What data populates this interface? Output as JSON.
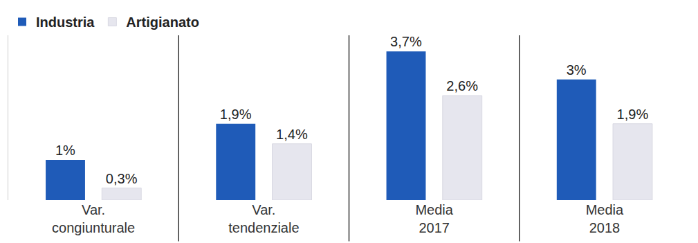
{
  "chart_data": {
    "type": "bar",
    "categories": [
      "Var. congiunturale",
      "Var. tendenziale",
      "Media 2017",
      "Media 2018"
    ],
    "series": [
      {
        "name": "Industria",
        "color": "#1f5bb8",
        "values": [
          1,
          1.9,
          3.7,
          3
        ],
        "value_labels": [
          "1%",
          "1,9%",
          "3,7%",
          "3%"
        ]
      },
      {
        "name": "Artigianato",
        "color": "#e6e6ee",
        "values": [
          0.3,
          1.4,
          2.6,
          1.9
        ],
        "value_labels": [
          "0,3%",
          "1,4%",
          "2,6%",
          "1,9%"
        ]
      }
    ],
    "ylim": [
      0,
      4.1
    ],
    "yticks": [],
    "grid": false,
    "legend": "top-left",
    "data_labels": true,
    "tick_labels": "x"
  }
}
